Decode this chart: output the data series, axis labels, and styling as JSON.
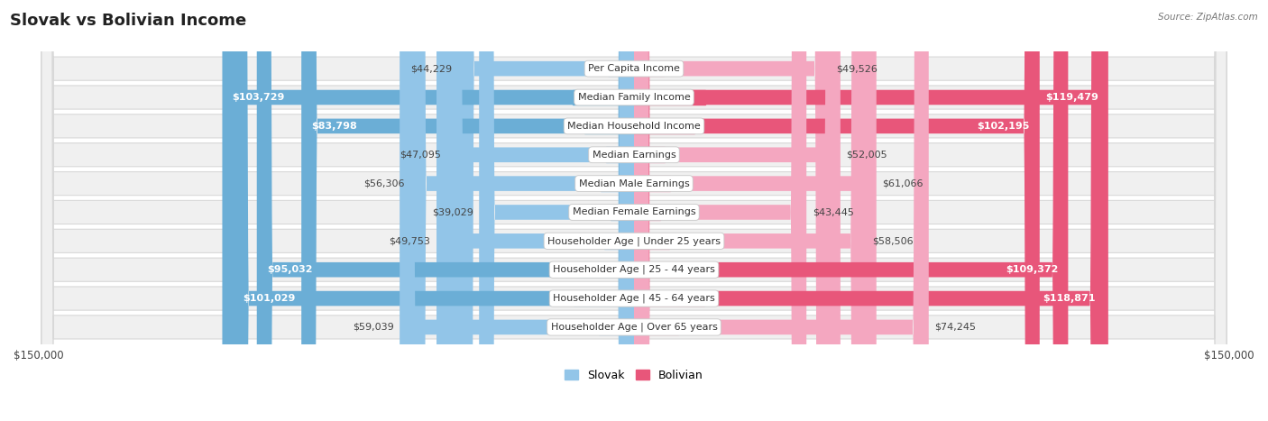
{
  "title": "Slovak vs Bolivian Income",
  "source": "Source: ZipAtlas.com",
  "categories": [
    "Per Capita Income",
    "Median Family Income",
    "Median Household Income",
    "Median Earnings",
    "Median Male Earnings",
    "Median Female Earnings",
    "Householder Age | Under 25 years",
    "Householder Age | 25 - 44 years",
    "Householder Age | 45 - 64 years",
    "Householder Age | Over 65 years"
  ],
  "slovak_values": [
    44229,
    103729,
    83798,
    47095,
    56306,
    39029,
    49753,
    95032,
    101029,
    59039
  ],
  "bolivian_values": [
    49526,
    119479,
    102195,
    52005,
    61066,
    43445,
    58506,
    109372,
    118871,
    74245
  ],
  "slovak_color_normal": "#92C5E8",
  "slovak_color_highlight": "#6BAED6",
  "bolivian_color_normal": "#F4A7C0",
  "bolivian_color_highlight": "#E8567A",
  "slovak_highlight": [
    1,
    2,
    7,
    8
  ],
  "bolivian_highlight": [
    1,
    2,
    7,
    8
  ],
  "max_value": 150000,
  "bg_color": "#ffffff",
  "row_bg": "#f0f0f0",
  "row_border": "#d8d8d8",
  "title_fontsize": 13,
  "label_fontsize": 8,
  "value_fontsize": 8
}
